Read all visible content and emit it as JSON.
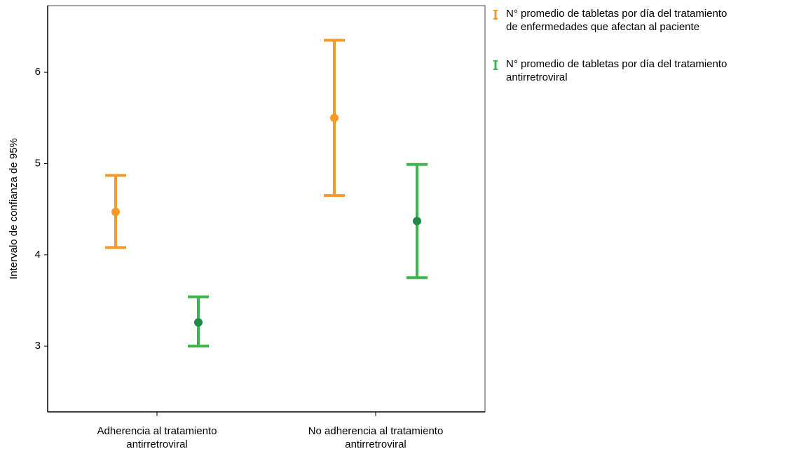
{
  "chart_data": {
    "type": "errorbar",
    "y_label": "Intervalo de confianza de 95%",
    "categories": [
      "Adherencia al tratamiento\nantirretroviral",
      "No adherencia al tratamiento\nantirretroviral"
    ],
    "series": [
      {
        "name": "N° promedio de tabletas por día del tratamiento\nde enfermedades que afectan al paciente",
        "color": "#f59a2a",
        "point_color": "#f59a2a",
        "values": [
          4.47,
          5.5
        ],
        "lower": [
          4.08,
          4.65
        ],
        "upper": [
          4.87,
          6.35
        ]
      },
      {
        "name": "N° promedio de tabletas por día del tratamiento\nantirretroviral",
        "color": "#3db54a",
        "point_color": "#1e8a45",
        "values": [
          3.26,
          4.37
        ],
        "lower": [
          3.0,
          3.75
        ],
        "upper": [
          3.54,
          4.99
        ]
      }
    ],
    "ylim": [
      2.28,
      6.73
    ],
    "yticks": [
      3,
      4,
      5,
      6
    ],
    "grid": false,
    "legend": "right"
  }
}
